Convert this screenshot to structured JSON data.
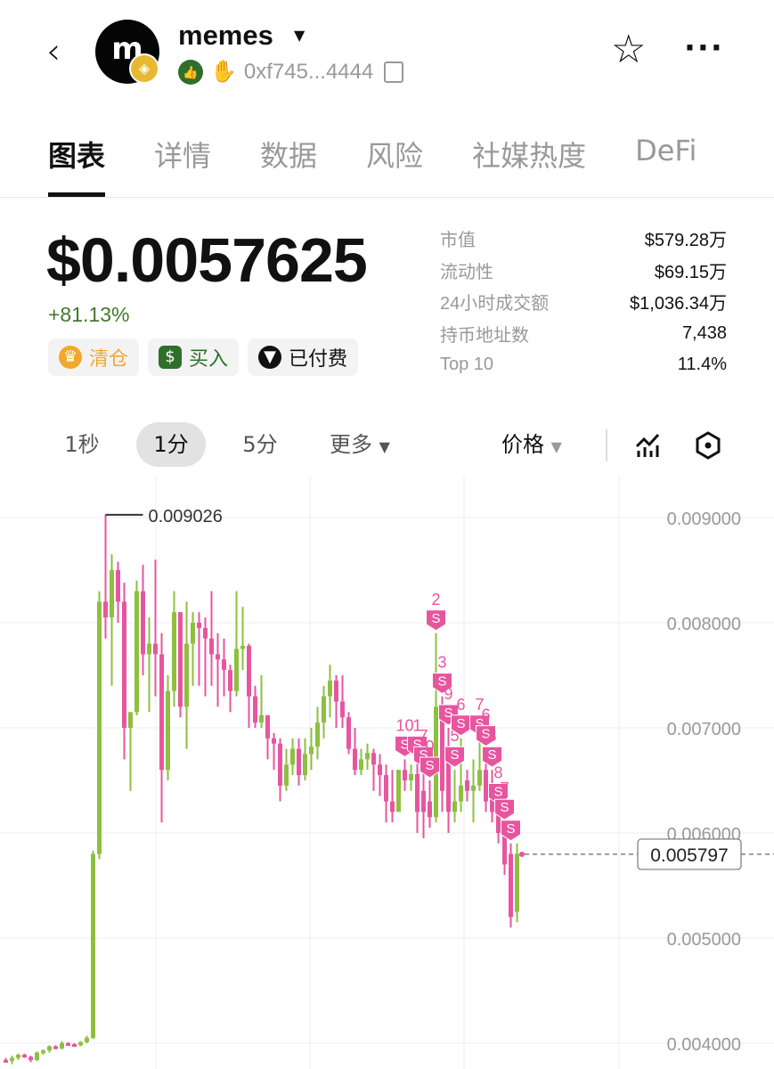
{
  "header": {
    "back_icon": "chevron-left-icon",
    "avatar_letter": "m",
    "chain_icon": "bnb-chain-icon",
    "token_name": "memes",
    "address": "0xf745...4444",
    "verified_icon": "thumbs-up-badge-icon",
    "hand_icon": "waving-hand-icon",
    "copy_icon": "copy-icon",
    "star_icon": "star-outline-icon",
    "more_icon": "more-horizontal-icon"
  },
  "tabs": [
    {
      "label": "图表",
      "active": true
    },
    {
      "label": "详情"
    },
    {
      "label": "数据"
    },
    {
      "label": "风险"
    },
    {
      "label": "社媒热度"
    },
    {
      "label": "DeFi"
    }
  ],
  "price": {
    "value": "$0.0057625",
    "change": "+81.13%"
  },
  "tags": [
    {
      "label": "清仓",
      "icon": "chef-hat-icon",
      "color": "#f0a92e"
    },
    {
      "label": "买入",
      "icon": "money-bag-icon",
      "color": "#2f6f2a"
    },
    {
      "label": "已付费",
      "icon": "eagle-icon",
      "color": "#111111"
    }
  ],
  "stats": [
    {
      "label": "市值",
      "value": "$579.28万"
    },
    {
      "label": "流动性",
      "value": "$69.15万"
    },
    {
      "label": "24小时成交额",
      "value": "$1,036.34万"
    },
    {
      "label": "持币地址数",
      "value": "7,438"
    },
    {
      "label": "Top 10",
      "value": "11.4%"
    }
  ],
  "toolbar": {
    "timeframes": [
      {
        "label": "1秒"
      },
      {
        "label": "1分",
        "selected": true
      },
      {
        "label": "5分"
      }
    ],
    "more_label": "更多",
    "price_label": "价格",
    "indicator_icon": "chart-indicator-icon",
    "settings_icon": "hexagon-settings-icon"
  },
  "chart_data": {
    "type": "candlestick",
    "y_ticks": [
      "0.009000",
      "0.008000",
      "0.007000",
      "0.006000",
      "0.005000",
      "0.004000"
    ],
    "ylim": [
      0.00385,
      0.00947
    ],
    "max_label": "0.009026",
    "current_price_label": "0.005797",
    "current_price": 0.005797,
    "colors": {
      "up": "#8dc03f",
      "down": "#e8559f"
    },
    "grid": true,
    "candles": [
      [
        0.00384,
        0.00386,
        0.00382,
        0.00383
      ],
      [
        0.00383,
        0.00388,
        0.0038,
        0.00386
      ],
      [
        0.00386,
        0.0039,
        0.00384,
        0.00389
      ],
      [
        0.00389,
        0.0039,
        0.00386,
        0.00387
      ],
      [
        0.00387,
        0.00388,
        0.00382,
        0.00384
      ],
      [
        0.00384,
        0.00392,
        0.00383,
        0.00391
      ],
      [
        0.00391,
        0.00394,
        0.00389,
        0.00393
      ],
      [
        0.00393,
        0.00398,
        0.00391,
        0.00397
      ],
      [
        0.00397,
        0.00398,
        0.00394,
        0.00395
      ],
      [
        0.00395,
        0.00402,
        0.00394,
        0.004
      ],
      [
        0.004,
        0.00401,
        0.00398,
        0.00399
      ],
      [
        0.00399,
        0.004,
        0.00397,
        0.00398
      ],
      [
        0.00398,
        0.00402,
        0.00397,
        0.00401
      ],
      [
        0.00401,
        0.00407,
        0.004,
        0.00405
      ],
      [
        0.00405,
        0.00583,
        0.00404,
        0.0058
      ],
      [
        0.0058,
        0.0083,
        0.00575,
        0.0082
      ],
      [
        0.0082,
        0.00903,
        0.00785,
        0.00805
      ],
      [
        0.00805,
        0.00865,
        0.0074,
        0.0085
      ],
      [
        0.0085,
        0.00858,
        0.008,
        0.0082
      ],
      [
        0.0082,
        0.00838,
        0.0067,
        0.007
      ],
      [
        0.007,
        0.00715,
        0.0064,
        0.00715
      ],
      [
        0.00715,
        0.0084,
        0.00712,
        0.0083
      ],
      [
        0.0083,
        0.00855,
        0.0075,
        0.0077
      ],
      [
        0.0077,
        0.00805,
        0.00715,
        0.0078
      ],
      [
        0.0078,
        0.0086,
        0.0073,
        0.0077
      ],
      [
        0.0077,
        0.0079,
        0.0061,
        0.0066
      ],
      [
        0.0066,
        0.0075,
        0.0065,
        0.00735
      ],
      [
        0.00735,
        0.0083,
        0.0072,
        0.0081
      ],
      [
        0.0081,
        0.0081,
        0.0071,
        0.0072
      ],
      [
        0.0072,
        0.0082,
        0.0068,
        0.0078
      ],
      [
        0.0078,
        0.0081,
        0.0074,
        0.008
      ],
      [
        0.008,
        0.0081,
        0.0074,
        0.00795
      ],
      [
        0.00795,
        0.00805,
        0.0073,
        0.00785
      ],
      [
        0.00785,
        0.0083,
        0.0074,
        0.0077
      ],
      [
        0.0077,
        0.0079,
        0.0072,
        0.00765
      ],
      [
        0.00765,
        0.00785,
        0.0073,
        0.00755
      ],
      [
        0.00755,
        0.0076,
        0.00715,
        0.00735
      ],
      [
        0.00735,
        0.0083,
        0.0073,
        0.00775
      ],
      [
        0.00775,
        0.00815,
        0.00755,
        0.00778
      ],
      [
        0.00778,
        0.0078,
        0.007,
        0.0073
      ],
      [
        0.0073,
        0.0074,
        0.007,
        0.00705
      ],
      [
        0.00705,
        0.0075,
        0.007,
        0.00712
      ],
      [
        0.00712,
        0.00712,
        0.0067,
        0.0069
      ],
      [
        0.0069,
        0.00695,
        0.0066,
        0.00685
      ],
      [
        0.00685,
        0.0069,
        0.0063,
        0.00645
      ],
      [
        0.00645,
        0.0068,
        0.0064,
        0.00665
      ],
      [
        0.00665,
        0.0069,
        0.00655,
        0.0068
      ],
      [
        0.0068,
        0.0069,
        0.00645,
        0.00655
      ],
      [
        0.00655,
        0.0069,
        0.0065,
        0.00675
      ],
      [
        0.00675,
        0.007,
        0.0066,
        0.00682
      ],
      [
        0.00682,
        0.0072,
        0.0067,
        0.00705
      ],
      [
        0.00705,
        0.0074,
        0.0069,
        0.0073
      ],
      [
        0.0073,
        0.0076,
        0.0071,
        0.00745
      ],
      [
        0.00745,
        0.0075,
        0.007,
        0.00725
      ],
      [
        0.00725,
        0.0075,
        0.007,
        0.0071
      ],
      [
        0.0071,
        0.00715,
        0.00675,
        0.0068
      ],
      [
        0.0068,
        0.007,
        0.00655,
        0.0066
      ],
      [
        0.0066,
        0.0068,
        0.00655,
        0.0067
      ],
      [
        0.0067,
        0.00685,
        0.0066,
        0.00676
      ],
      [
        0.00676,
        0.0068,
        0.0064,
        0.00665
      ],
      [
        0.00665,
        0.00675,
        0.00635,
        0.00655
      ],
      [
        0.00655,
        0.00665,
        0.0061,
        0.0063
      ],
      [
        0.0063,
        0.0066,
        0.0061,
        0.0062
      ],
      [
        0.0062,
        0.0066,
        0.0062,
        0.0066
      ],
      [
        0.0066,
        0.0067,
        0.0064,
        0.0065
      ],
      [
        0.0065,
        0.00665,
        0.0064,
        0.00656
      ],
      [
        0.00656,
        0.0067,
        0.006,
        0.0062
      ],
      [
        0.0064,
        0.0066,
        0.00595,
        0.0062
      ],
      [
        0.0063,
        0.0065,
        0.00605,
        0.00615
      ],
      [
        0.00615,
        0.0079,
        0.0061,
        0.0072
      ],
      [
        0.0071,
        0.0073,
        0.0062,
        0.0064
      ],
      [
        0.0068,
        0.007,
        0.006,
        0.0062
      ],
      [
        0.0062,
        0.0066,
        0.0061,
        0.0063
      ],
      [
        0.0063,
        0.0069,
        0.0062,
        0.00645
      ],
      [
        0.0065,
        0.0066,
        0.0063,
        0.0064
      ],
      [
        0.0064,
        0.0067,
        0.0061,
        0.00645
      ],
      [
        0.00645,
        0.0069,
        0.0064,
        0.0066
      ],
      [
        0.0066,
        0.0068,
        0.0062,
        0.0063
      ],
      [
        0.0064,
        0.0066,
        0.0061,
        0.0062
      ],
      [
        0.0062,
        0.00625,
        0.0059,
        0.006
      ],
      [
        0.006,
        0.0061,
        0.0056,
        0.0057
      ],
      [
        0.0058,
        0.0059,
        0.0051,
        0.0052
      ],
      [
        0.00525,
        0.0059,
        0.00515,
        0.0058
      ]
    ],
    "markers": [
      {
        "candle": 69,
        "label": "2"
      },
      {
        "candle": 70,
        "label": "3"
      },
      {
        "candle": 71,
        "label": "9"
      },
      {
        "candle": 64,
        "label": "10"
      },
      {
        "candle": 66,
        "label": "1"
      },
      {
        "candle": 67,
        "label": "7"
      },
      {
        "candle": 68,
        "label": "0"
      },
      {
        "candle": 72,
        "label": "5"
      },
      {
        "candle": 73,
        "label": "6"
      },
      {
        "candle": 76,
        "label": "7"
      },
      {
        "candle": 77,
        "label": "6"
      },
      {
        "candle": 78,
        "label": "8"
      },
      {
        "candle": 79,
        "label": "8"
      },
      {
        "candle": 80,
        "label": "7"
      },
      {
        "candle": 81,
        "label": ""
      }
    ],
    "marker_text": "S",
    "marker_color": "#e8559f"
  }
}
